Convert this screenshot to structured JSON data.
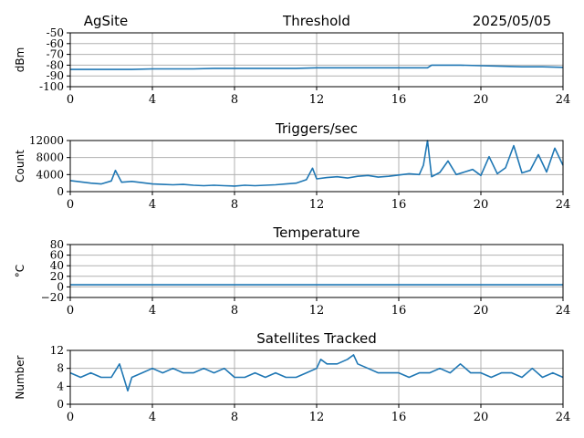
{
  "header": {
    "site": "AgSite",
    "date": "2025/05/05"
  },
  "colors": {
    "line": "#1f77b4",
    "grid": "#b0b0b0",
    "axis": "#000000"
  },
  "chart_data": [
    {
      "type": "line",
      "title": "Threshold",
      "ylabel": "dBm",
      "xlim": [
        0,
        24
      ],
      "ylim": [
        -100,
        -50
      ],
      "xticks": [
        "0",
        "4",
        "8",
        "12",
        "16",
        "20",
        "24"
      ],
      "yticks": [
        "-50",
        "-60",
        "-70",
        "-80",
        "-90",
        "-100"
      ],
      "grid": true,
      "series": [
        {
          "x": [
            0,
            1,
            2,
            3,
            4,
            5,
            6,
            7,
            8,
            9,
            10,
            11,
            12,
            13,
            14,
            15,
            16,
            17,
            17.4,
            17.6,
            18,
            19,
            20,
            21,
            22,
            23,
            24
          ],
          "y": [
            -84,
            -84,
            -84,
            -84,
            -83.5,
            -83.5,
            -83.5,
            -83,
            -83,
            -83,
            -83,
            -83,
            -82.5,
            -82.5,
            -82.5,
            -82.5,
            -82.5,
            -82.5,
            -82.5,
            -80,
            -80,
            -80,
            -80.5,
            -81,
            -81.5,
            -81.5,
            -82
          ]
        }
      ]
    },
    {
      "type": "line",
      "title": "Triggers/sec",
      "ylabel": "Count",
      "xlim": [
        0,
        24
      ],
      "ylim": [
        0,
        12000
      ],
      "xticks": [
        "0",
        "4",
        "8",
        "12",
        "16",
        "20",
        "24"
      ],
      "yticks": [
        "12000",
        "8000",
        "4000",
        "0"
      ],
      "grid": true,
      "series": [
        {
          "x": [
            0,
            0.5,
            1,
            1.5,
            2,
            2.2,
            2.5,
            3,
            3.5,
            4,
            4.5,
            5,
            5.5,
            6,
            6.5,
            7,
            7.5,
            8,
            8.5,
            9,
            9.5,
            10,
            10.5,
            11,
            11.5,
            11.8,
            12,
            12.5,
            13,
            13.5,
            14,
            14.5,
            15,
            15.5,
            16,
            16.5,
            17,
            17.2,
            17.4,
            17.6,
            18,
            18.4,
            18.8,
            19.2,
            19.6,
            20,
            20.4,
            20.8,
            21.2,
            21.6,
            22,
            22.4,
            22.8,
            23.2,
            23.6,
            24
          ],
          "y": [
            2600,
            2300,
            2000,
            1800,
            2500,
            5000,
            2200,
            2400,
            2100,
            1800,
            1700,
            1600,
            1700,
            1500,
            1400,
            1500,
            1400,
            1300,
            1500,
            1400,
            1500,
            1600,
            1800,
            2000,
            2800,
            5500,
            3000,
            3300,
            3500,
            3200,
            3600,
            3800,
            3400,
            3600,
            3900,
            4200,
            4000,
            6200,
            12000,
            3500,
            4500,
            7200,
            4000,
            4600,
            5200,
            3800,
            8200,
            4200,
            5600,
            10800,
            4400,
            5000,
            8700,
            4600,
            10200,
            6200
          ]
        }
      ]
    },
    {
      "type": "line",
      "title": "Temperature",
      "ylabel": "°C",
      "xlim": [
        0,
        24
      ],
      "ylim": [
        -20,
        80
      ],
      "xticks": [
        "0",
        "4",
        "8",
        "12",
        "16",
        "20",
        "24"
      ],
      "yticks": [
        "80",
        "60",
        "40",
        "20",
        "0",
        "−20"
      ],
      "grid": true,
      "series": [
        {
          "x": [
            0,
            24
          ],
          "y": [
            4,
            4
          ]
        }
      ]
    },
    {
      "type": "line",
      "title": "Satellites Tracked",
      "ylabel": "Number",
      "xlim": [
        0,
        24
      ],
      "ylim": [
        0,
        12
      ],
      "xticks": [
        "0",
        "4",
        "8",
        "12",
        "16",
        "20",
        "24"
      ],
      "yticks": [
        "12",
        "8",
        "4",
        "0"
      ],
      "grid": true,
      "series": [
        {
          "x": [
            0,
            0.5,
            1,
            1.5,
            2,
            2.4,
            2.6,
            2.8,
            3,
            3.5,
            4,
            4.5,
            5,
            5.5,
            6,
            6.5,
            7,
            7.5,
            8,
            8.5,
            9,
            9.5,
            10,
            10.5,
            11,
            11.5,
            12,
            12.2,
            12.5,
            13,
            13.5,
            13.8,
            14,
            14.5,
            15,
            15.5,
            16,
            16.5,
            17,
            17.5,
            18,
            18.5,
            19,
            19.5,
            20,
            20.5,
            21,
            21.5,
            22,
            22.5,
            23,
            23.5,
            24
          ],
          "y": [
            7,
            6,
            7,
            6,
            6,
            9,
            6,
            3,
            6,
            7,
            8,
            7,
            8,
            7,
            7,
            8,
            7,
            8,
            6,
            6,
            7,
            6,
            7,
            6,
            6,
            7,
            8,
            10,
            9,
            9,
            10,
            11,
            9,
            8,
            7,
            7,
            7,
            6,
            7,
            7,
            8,
            7,
            9,
            7,
            7,
            6,
            7,
            7,
            6,
            8,
            6,
            7,
            6
          ]
        }
      ]
    }
  ]
}
